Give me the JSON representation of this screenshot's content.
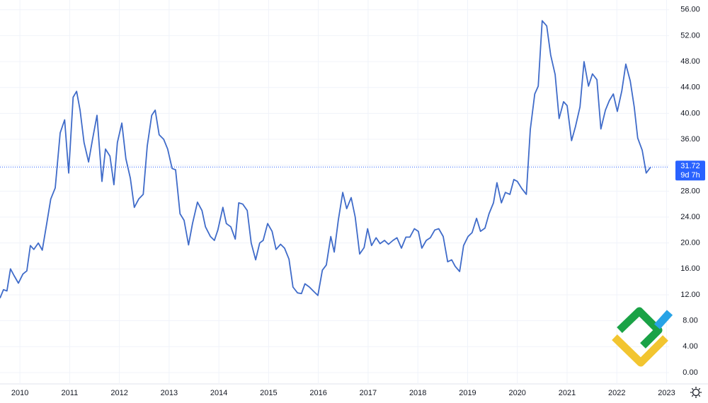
{
  "chart_data": {
    "type": "line",
    "x": [
      2009.6,
      2009.67,
      2009.74,
      2009.81,
      2009.88,
      2009.97,
      2010.06,
      2010.14,
      2010.21,
      2010.28,
      2010.37,
      2010.45,
      2010.54,
      2010.62,
      2010.71,
      2010.81,
      2010.9,
      2010.98,
      2011.07,
      2011.14,
      2011.21,
      2011.29,
      2011.38,
      2011.46,
      2011.55,
      2011.65,
      2011.72,
      2011.81,
      2011.89,
      2011.96,
      2012.05,
      2012.13,
      2012.22,
      2012.3,
      2012.39,
      2012.48,
      2012.56,
      2012.65,
      2012.72,
      2012.8,
      2012.89,
      2012.97,
      2013.06,
      2013.13,
      2013.22,
      2013.3,
      2013.39,
      2013.47,
      2013.57,
      2013.66,
      2013.73,
      2013.83,
      2013.91,
      2013.98,
      2014.08,
      2014.15,
      2014.24,
      2014.33,
      2014.4,
      2014.48,
      2014.57,
      2014.65,
      2014.74,
      2014.82,
      2014.89,
      2014.98,
      2015.07,
      2015.15,
      2015.24,
      2015.32,
      2015.41,
      2015.49,
      2015.58,
      2015.66,
      2015.73,
      2015.82,
      2015.91,
      2015.99,
      2016.08,
      2016.16,
      2016.25,
      2016.32,
      2016.4,
      2016.49,
      2016.57,
      2016.66,
      2016.74,
      2016.83,
      2016.92,
      2016.99,
      2017.07,
      2017.16,
      2017.24,
      2017.33,
      2017.41,
      2017.5,
      2017.58,
      2017.67,
      2017.76,
      2017.84,
      2017.93,
      2018.01,
      2018.08,
      2018.17,
      2018.25,
      2018.34,
      2018.42,
      2018.51,
      2018.6,
      2018.68,
      2018.75,
      2018.84,
      2018.92,
      2019.01,
      2019.09,
      2019.18,
      2019.26,
      2019.35,
      2019.43,
      2019.52,
      2019.59,
      2019.68,
      2019.76,
      2019.85,
      2019.93,
      2020.0,
      2020.09,
      2020.18,
      2020.26,
      2020.35,
      2020.42,
      2020.5,
      2020.59,
      2020.67,
      2020.76,
      2020.84,
      2020.93,
      2021.0,
      2021.09,
      2021.17,
      2021.26,
      2021.34,
      2021.43,
      2021.51,
      2021.6,
      2021.68,
      2021.77,
      2021.85,
      2021.93,
      2022.01,
      2022.1,
      2022.18,
      2022.27,
      2022.35,
      2022.42,
      2022.51,
      2022.59,
      2022.68
    ],
    "values": [
      11.5,
      12.8,
      12.6,
      16,
      15,
      13.8,
      15.2,
      15.7,
      19.6,
      19,
      20,
      18.9,
      23,
      26.8,
      28.5,
      37,
      39,
      30.8,
      42.5,
      43.4,
      40.5,
      35.5,
      32.5,
      36,
      39.7,
      29.5,
      34.5,
      33.4,
      29,
      35.5,
      38.5,
      33,
      30,
      25.5,
      26.8,
      27.5,
      35,
      39.7,
      40.5,
      36.7,
      36,
      34.5,
      31.5,
      31.3,
      24.5,
      23.5,
      19.7,
      23,
      26.3,
      25,
      22.5,
      21,
      20.4,
      22,
      25.5,
      23,
      22.5,
      20.6,
      26.2,
      26,
      25,
      20,
      17.4,
      20,
      20.4,
      23,
      21.8,
      19,
      19.8,
      19.2,
      17.5,
      13.2,
      12.3,
      12.2,
      13.7,
      13.2,
      12.5,
      11.9,
      15.8,
      16.6,
      21,
      18.6,
      23.5,
      27.8,
      25.3,
      27,
      24,
      18.3,
      19.3,
      22.2,
      19.6,
      20.8,
      19.9,
      20.4,
      19.8,
      20.4,
      20.8,
      19.2,
      20.9,
      20.9,
      22.2,
      21.8,
      19.2,
      20.4,
      20.8,
      22,
      22.2,
      21,
      17.1,
      17.4,
      16.4,
      15.6,
      19.6,
      21,
      21.6,
      23.8,
      21.8,
      22.3,
      24.5,
      26.2,
      29.3,
      26.2,
      27.8,
      27.5,
      29.8,
      29.5,
      28.4,
      27.5,
      37.5,
      43,
      44.2,
      54.3,
      53.5,
      49,
      46,
      39.2,
      41.8,
      41.2,
      35.8,
      38,
      41,
      48,
      44.2,
      46.1,
      45.2,
      37.6,
      40.5,
      42,
      43,
      40.3,
      43.5,
      47.6,
      45,
      41,
      36.2,
      34.3,
      30.8,
      31.72
    ],
    "color": "#3f6bc9",
    "xlim": [
      2009.6,
      2023.05
    ],
    "xticks": [
      2010,
      2011,
      2012,
      2013,
      2014,
      2015,
      2016,
      2017,
      2018,
      2019,
      2020,
      2021,
      2022,
      2023
    ],
    "ylim": [
      -1.75,
      57.5
    ],
    "yticks": [
      {
        "value": 0,
        "label": "0.00"
      },
      {
        "value": 4,
        "label": "4.00"
      },
      {
        "value": 8,
        "label": "8.00"
      },
      {
        "value": 12,
        "label": "12.00"
      },
      {
        "value": 16,
        "label": "16.00"
      },
      {
        "value": 20,
        "label": "20.00"
      },
      {
        "value": 24,
        "label": "24.00"
      },
      {
        "value": 28,
        "label": "28.00"
      },
      {
        "value": 32,
        "label": "32.00"
      },
      {
        "value": 36,
        "label": "36.00"
      },
      {
        "value": 40,
        "label": "40.00"
      },
      {
        "value": 44,
        "label": "44.00"
      },
      {
        "value": 48,
        "label": "48.00"
      },
      {
        "value": 52,
        "label": "52.00"
      },
      {
        "value": 56,
        "label": "56.00"
      }
    ],
    "grid": true,
    "last_price": {
      "value": 31.72,
      "label": "31.72"
    },
    "countdown": "9d 7h"
  }
}
